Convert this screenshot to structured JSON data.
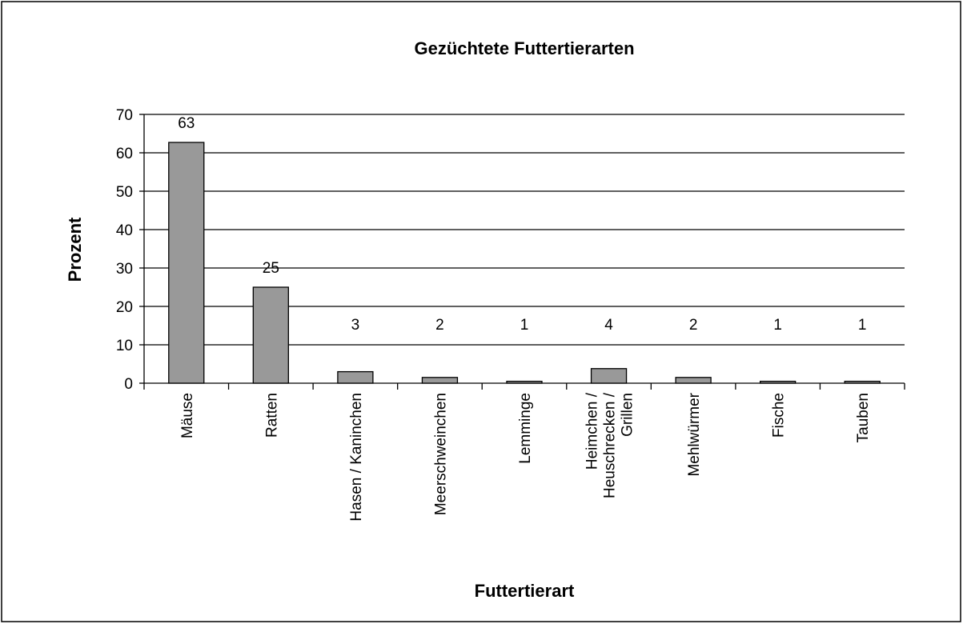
{
  "chart_data": {
    "type": "bar",
    "title": "Gezüchtete Futtertierarten",
    "x_label": "Futtertierart",
    "y_label": "Prozent",
    "categories": [
      "Mäuse",
      "Ratten",
      "Hasen / Kaninchen",
      "Meerschweinchen",
      "Lemminge",
      "Heimchen / Heuschrecken / Grillen",
      "Mehlwürmer",
      "Fische",
      "Tauben"
    ],
    "values": [
      62.7,
      25,
      3,
      1.5,
      0.5,
      3.8,
      1.5,
      0.5,
      0.5
    ],
    "value_labels": [
      "63",
      "25",
      "3",
      "2",
      "1",
      "4",
      "2",
      "1",
      "1"
    ],
    "color": "#999999",
    "ylim": [
      0,
      70
    ],
    "yticks": [
      0,
      10,
      20,
      30,
      40,
      50,
      60,
      70
    ],
    "grid": true
  }
}
